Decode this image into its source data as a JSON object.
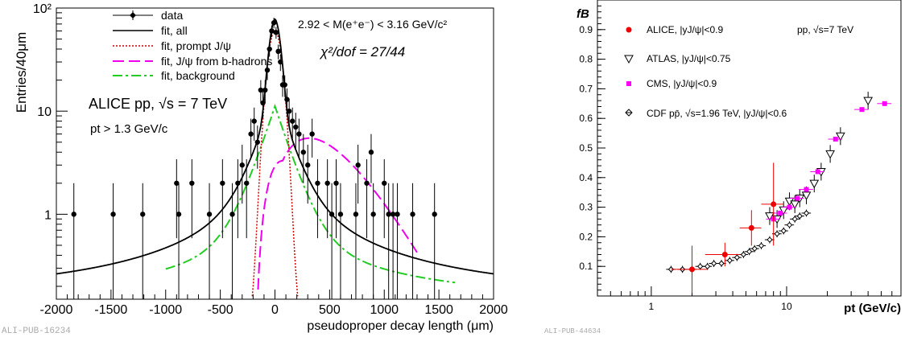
{
  "chart_data": [
    {
      "type": "scatter",
      "xlabel": "pseudoproper decay length (μm)",
      "ylabel": "Entries/40μm",
      "xlim": [
        -2000,
        2000
      ],
      "ylim": [
        0.15,
        100
      ],
      "y_scale": "log",
      "x_ticks": [
        "-2000",
        "-1500",
        "-1000",
        "-500",
        "0",
        "500",
        "1000",
        "1500",
        "2000"
      ],
      "y_ticks": [
        "1",
        "10",
        "10²"
      ],
      "legend": [
        "data",
        "fit, all",
        "fit, prompt J/ψ",
        "fit, J/ψ from b-hadrons",
        "fit, background"
      ],
      "mass_window": "2.92 < M(e⁺e⁻) < 3.16 GeV/c²",
      "chi2_label": "χ²/dof = 27/44",
      "system_label": "ALICE pp, √s = 7 TeV",
      "pt_cut": "pt > 1.3 GeV/c",
      "footer": "ALI-PUB-16234",
      "colors": {
        "data": "#000000",
        "fit_all": "#000000",
        "prompt": "#cc0000",
        "bhadron": "#ee00ee",
        "background": "#22cc22"
      },
      "series": [
        {
          "name": "data",
          "x": [
            -1840,
            -1480,
            -1210,
            -900,
            -880,
            -760,
            -600,
            -480,
            -390,
            -340,
            -300,
            -260,
            -220,
            -190,
            -160,
            -130,
            -110,
            -90,
            -70,
            -50,
            -30,
            -10,
            10,
            30,
            50,
            70,
            90,
            110,
            130,
            160,
            190,
            220,
            260,
            300,
            340,
            390,
            480,
            520,
            560,
            600,
            740,
            760,
            840,
            880,
            900,
            1000,
            1040,
            1080,
            1120,
            1260,
            1460
          ],
          "y": [
            1,
            1,
            1,
            2,
            1,
            2,
            1,
            2,
            1,
            2,
            3,
            2,
            6,
            8,
            5,
            16,
            12,
            16,
            25,
            40,
            60,
            72,
            58,
            38,
            30,
            18,
            18,
            13,
            10,
            8,
            7,
            6,
            4,
            3,
            6,
            2,
            2,
            1,
            2,
            1,
            1,
            3,
            2,
            4,
            1,
            2,
            1,
            1,
            1,
            1,
            1
          ]
        }
      ]
    },
    {
      "type": "scatter",
      "ylabel": "fB",
      "xlabel": "pt (GeV/c)",
      "x_scale": "log",
      "xlim": [
        0.4,
        70
      ],
      "ylim": [
        0,
        1
      ],
      "x_ticks": [
        "1",
        "10"
      ],
      "y_ticks": [
        "0.1",
        "0.2",
        "0.3",
        "0.4",
        "0.5",
        "0.6",
        "0.7",
        "0.8",
        "0.9"
      ],
      "system_label": "pp, √s=7 TeV",
      "footer": "ALI-PUB-44634",
      "colors": {
        "ALICE": "#ee0000",
        "ATLAS": "#000000",
        "CMS": "#ff00ff",
        "CDF": "#000000"
      },
      "series": [
        {
          "name": "ALICE, |yJ/ψ|<0.9",
          "x": [
            2.0,
            3.5,
            5.5,
            8.0
          ],
          "y": [
            0.09,
            0.14,
            0.23,
            0.31
          ],
          "xerr": [
            0.6,
            1.0,
            1.0,
            1.5
          ],
          "yerr": [
            0.08,
            0.04,
            0.06,
            0.14
          ]
        },
        {
          "name": "ATLAS, |yJ/ψ|<0.75",
          "x": [
            7.5,
            8.5,
            9.5,
            10.5,
            11.5,
            12.5,
            14,
            16,
            18,
            21,
            25,
            40
          ],
          "y": [
            0.27,
            0.26,
            0.29,
            0.32,
            0.31,
            0.33,
            0.34,
            0.38,
            0.42,
            0.48,
            0.54,
            0.66
          ]
        },
        {
          "name": "CMS, |yJ/ψ|<0.9",
          "x": [
            8.0,
            9.0,
            10.5,
            12.0,
            14.0,
            17.0,
            23.0,
            36.0,
            53.0
          ],
          "y": [
            0.26,
            0.28,
            0.3,
            0.33,
            0.36,
            0.42,
            0.53,
            0.63,
            0.65
          ]
        },
        {
          "name": "CDF pp̄, √s=1.96 TeV, |yJ/ψ|<0.6",
          "x": [
            1.4,
            1.7,
            2.0,
            2.3,
            2.6,
            2.9,
            3.3,
            3.8,
            4.3,
            4.8,
            5.3,
            5.8,
            6.5,
            7.5,
            8.5,
            9.5,
            10.5,
            11.5,
            12.5,
            14
          ],
          "y": [
            0.09,
            0.09,
            0.09,
            0.1,
            0.1,
            0.11,
            0.11,
            0.12,
            0.13,
            0.14,
            0.15,
            0.16,
            0.17,
            0.19,
            0.21,
            0.22,
            0.24,
            0.26,
            0.27,
            0.28
          ]
        }
      ]
    }
  ]
}
